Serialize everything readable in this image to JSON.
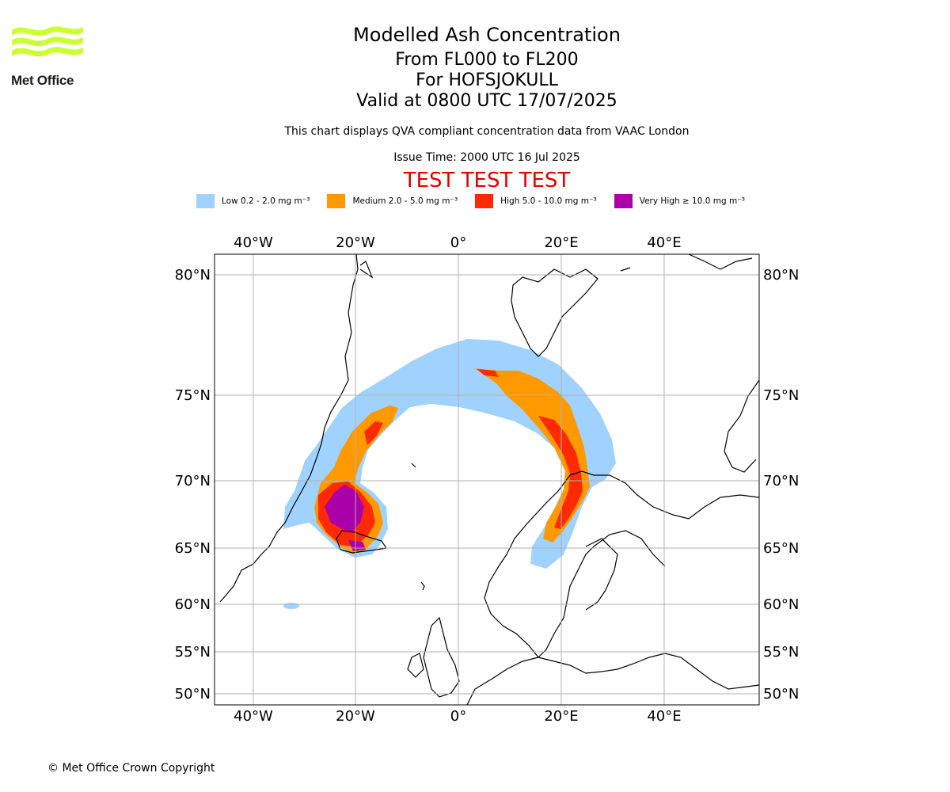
{
  "logo": {
    "text": "Met Office",
    "icon": "met-office-wave-logo",
    "color": "#ccff33"
  },
  "title": {
    "line1": "Modelled Ash Concentration",
    "line2": "From FL000 to FL200",
    "line3": "For HOFSJOKULL",
    "line4": "Valid at 0800 UTC 17/07/2025"
  },
  "subtitle": "This chart displays QVA compliant concentration data from VAAC London",
  "issue_time": "Issue Time: 2000 UTC 16 Jul 2025",
  "test_banner": "TEST TEST TEST",
  "legend": [
    {
      "label": "Low 0.2 - 2.0 mg m⁻³",
      "color": "#a0d2ff"
    },
    {
      "label": "Medium 2.0 - 5.0 mg m⁻³",
      "color": "#ff9900"
    },
    {
      "label": "High 5.0 - 10.0 mg m⁻³",
      "color": "#ff2a00"
    },
    {
      "label": "Very High ≥ 10.0 mg m⁻³",
      "color": "#aa00aa"
    }
  ],
  "map": {
    "lon_ticks": [
      "40°W",
      "20°W",
      "0°",
      "20°E",
      "40°E"
    ],
    "lat_ticks": [
      "80°N",
      "75°N",
      "70°N",
      "65°N",
      "60°N",
      "55°N",
      "50°N"
    ],
    "gridlines": true,
    "ash_region": "Iceland plume extending north-east over the Norwegian Sea to northern Scandinavia"
  },
  "copyright": "© Met Office Crown Copyright"
}
